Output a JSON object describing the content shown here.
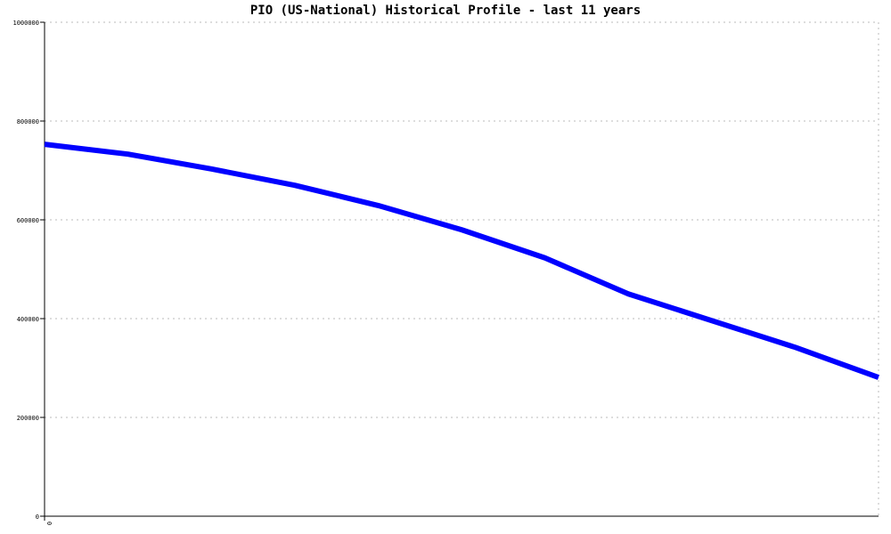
{
  "chart_data": {
    "type": "line",
    "title": "PIO (US-National) Historical Profile - last 11 years",
    "xlabel": "",
    "ylabel": "",
    "x_tick_labels": [
      "0"
    ],
    "y_tick_labels": [
      "0",
      "200000",
      "400000",
      "600000",
      "800000",
      "1000000"
    ],
    "ylim": [
      0,
      1000000
    ],
    "grid": true,
    "series": [
      {
        "color": "#0000ff",
        "values": [
          753000,
          733000,
          703000,
          670000,
          629000,
          580000,
          523000,
          450000,
          396000,
          342000,
          281000
        ]
      }
    ]
  }
}
